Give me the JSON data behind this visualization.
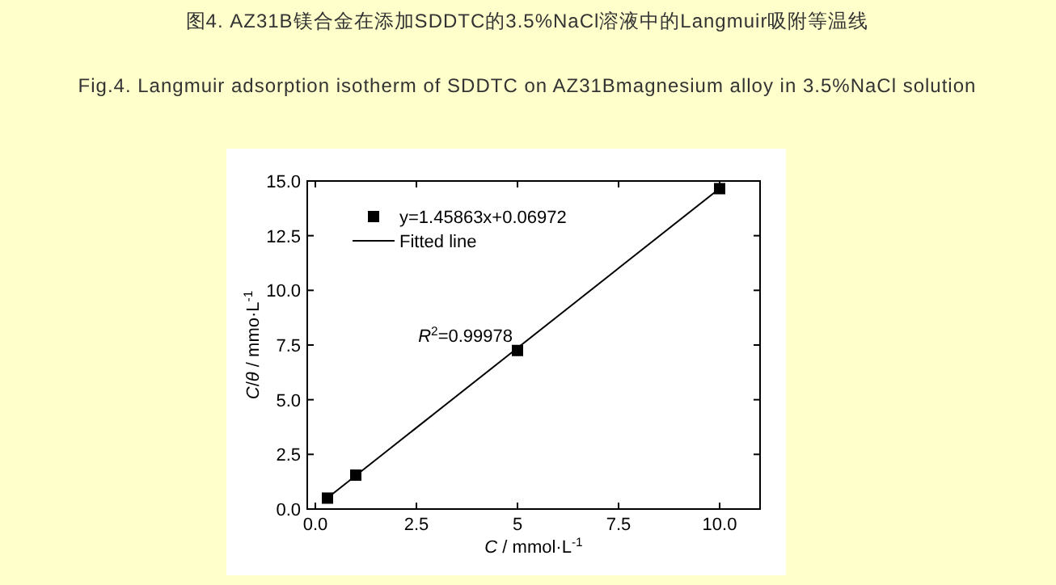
{
  "chart_data": {
    "type": "scatter",
    "title": "图4. AZ31B镁合金在添加SDDTC的3.5%NaCl溶液中的Langmuir吸附等温线",
    "subtitle": "Fig.4. Langmuir adsorption isotherm of SDDTC on AZ31Bmagnesium alloy in 3.5%NaCl solution",
    "xlabel": "*C* / mmol·L$^{-1}$",
    "ylabel": "*C*/*θ* / mmo·L$^{-1}$",
    "series": [
      {
        "name": "y=1.45863x+0.06972",
        "color": "#000000",
        "marker": "square",
        "x": [
          0.3,
          1,
          5,
          10
        ],
        "values": [
          0.5,
          1.55,
          7.25,
          14.65
        ]
      },
      {
        "name": "Fitted line",
        "type": "line",
        "color": "#000000",
        "marker": "none",
        "x": [
          0.3,
          10
        ],
        "values": [
          0.51,
          14.66
        ]
      }
    ],
    "annotations": [
      "*R*$^{2}$=0.99978"
    ],
    "xlim": [
      -0.2,
      11
    ],
    "ylim": [
      0,
      15
    ],
    "xticks": [
      {
        "value": 0,
        "label": "0.0"
      },
      2.5,
      5,
      7.5,
      {
        "value": 10,
        "label": "10.0"
      }
    ],
    "yticks": [
      {
        "value": 0,
        "label": "0.0"
      },
      2.5,
      {
        "value": 5,
        "label": "5.0"
      },
      7.5,
      {
        "value": 10,
        "label": "10.0"
      },
      12.5,
      {
        "value": 15,
        "label": "15.0"
      }
    ],
    "legend": "top left",
    "grid": false
  }
}
